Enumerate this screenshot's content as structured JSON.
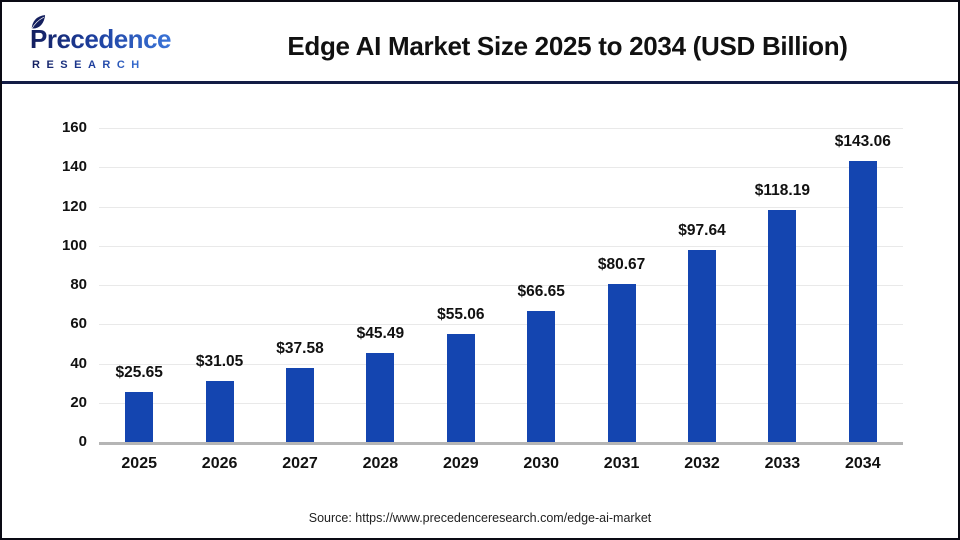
{
  "header": {
    "logo": {
      "brand": "Precedence",
      "subtitle": "RESEARCH"
    },
    "title": "Edge AI Market Size 2025 to 2034 (USD Billion)"
  },
  "chart_data": {
    "type": "bar",
    "title": "Edge AI Market Size 2025 to 2034 (USD Billion)",
    "categories": [
      "2025",
      "2026",
      "2027",
      "2028",
      "2029",
      "2030",
      "2031",
      "2032",
      "2033",
      "2034"
    ],
    "values": [
      25.65,
      31.05,
      37.58,
      45.49,
      55.06,
      66.65,
      80.67,
      97.64,
      118.19,
      143.06
    ],
    "value_labels": [
      "$25.65",
      "$31.05",
      "$37.58",
      "$45.49",
      "$55.06",
      "$66.65",
      "$80.67",
      "$97.64",
      "$118.19",
      "$143.06"
    ],
    "xlabel": "",
    "ylabel": "",
    "ylim": [
      0,
      160
    ],
    "yticks": [
      0,
      20,
      40,
      60,
      80,
      100,
      120,
      140,
      160
    ],
    "grid": true,
    "legend": "none",
    "bar_color": "#1445b0"
  },
  "footer": {
    "source": "Source: https://www.precedenceresearch.com/edge-ai-market"
  },
  "colors": {
    "bar": "#1445b0",
    "separator": "#131c45",
    "frame_border": "#0a0a14",
    "gridline": "#e9e9e9",
    "axis_line": "#b5b5b5",
    "logo_navy": "#141f5e",
    "logo_blue": "#3a74d8",
    "title_text": "#111111"
  }
}
